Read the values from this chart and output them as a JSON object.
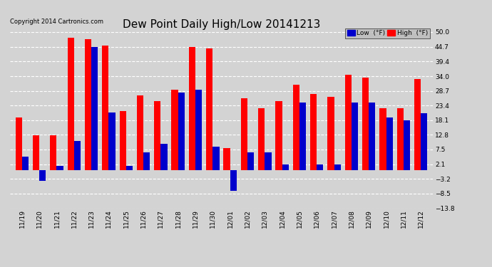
{
  "title": "Dew Point Daily High/Low 20141213",
  "copyright": "Copyright 2014 Cartronics.com",
  "legend_low": "Low  (°F)",
  "legend_high": "High  (°F)",
  "dates": [
    "11/19",
    "11/20",
    "11/21",
    "11/22",
    "11/23",
    "11/24",
    "11/25",
    "11/26",
    "11/27",
    "11/28",
    "11/29",
    "11/30",
    "12/01",
    "12/02",
    "12/03",
    "12/04",
    "12/05",
    "12/06",
    "12/07",
    "12/08",
    "12/09",
    "12/10",
    "12/11",
    "12/12"
  ],
  "high_values": [
    19.0,
    12.5,
    12.5,
    48.0,
    47.5,
    45.0,
    21.5,
    27.0,
    25.0,
    29.0,
    44.5,
    44.0,
    8.0,
    26.0,
    22.5,
    25.0,
    31.0,
    27.5,
    26.5,
    34.5,
    33.5,
    22.5,
    22.5,
    33.0
  ],
  "low_values": [
    5.0,
    -4.0,
    1.5,
    10.5,
    44.5,
    21.0,
    1.5,
    6.5,
    9.5,
    28.0,
    29.0,
    8.5,
    -7.5,
    6.5,
    6.5,
    2.1,
    24.5,
    2.1,
    2.1,
    24.5,
    24.5,
    19.0,
    18.0,
    20.5
  ],
  "ylim": [
    -13.8,
    50.0
  ],
  "yticks": [
    -13.8,
    -8.5,
    -3.2,
    2.1,
    7.5,
    12.8,
    18.1,
    23.4,
    28.7,
    34.0,
    39.4,
    44.7,
    50.0
  ],
  "bar_width": 0.38,
  "high_color": "#ff0000",
  "low_color": "#0000cc",
  "bg_color": "#d3d3d3",
  "grid_color": "#ffffff",
  "title_fontsize": 11,
  "tick_fontsize": 6.5,
  "copyright_fontsize": 6
}
